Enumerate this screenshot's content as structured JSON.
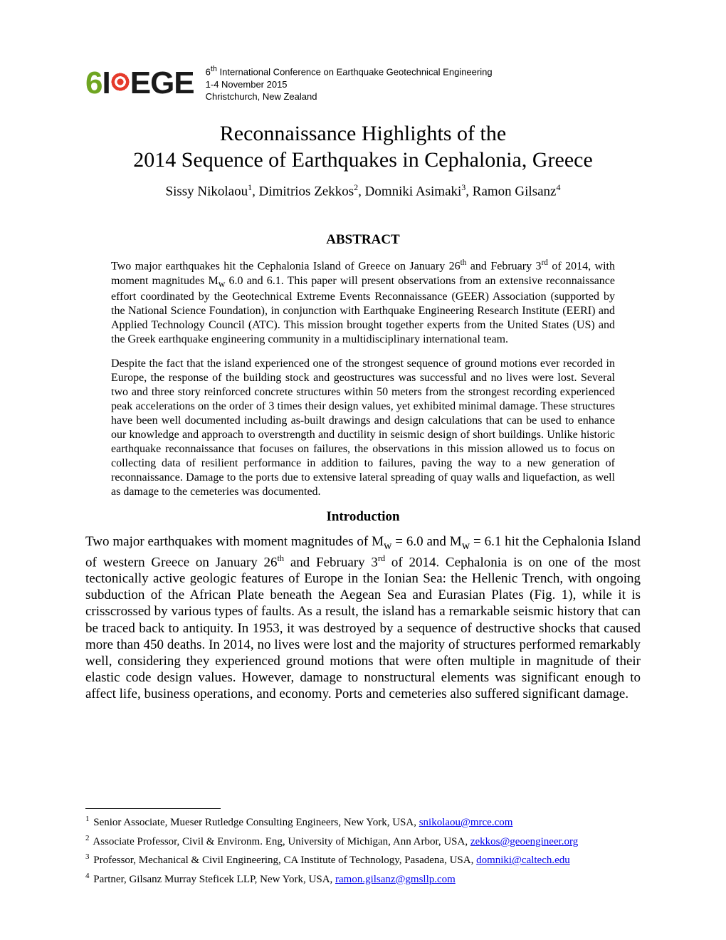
{
  "conference": {
    "line1_prefix": "6",
    "line1_sup": "th",
    "line1_rest": " International Conference on Earthquake Geotechnical Engineering",
    "line2": "1-4 November 2015",
    "line3": "Christchurch, New Zealand"
  },
  "logo": {
    "six": "6",
    "pre_target": "I",
    "post_target": "EGE"
  },
  "title": {
    "line1": "Reconnaissance Highlights of the",
    "line2": "2014 Sequence of Earthquakes in Cephalonia, Greece"
  },
  "authors": {
    "a1_name": "Sissy Nikolaou",
    "a1_sup": "1",
    "a2_name": "Dimitrios Zekkos",
    "a2_sup": "2",
    "a3_name": "Domniki Asimaki",
    "a3_sup": "3",
    "a4_name": "Ramon Gilsanz",
    "a4_sup": "4"
  },
  "headings": {
    "abstract": "ABSTRACT",
    "introduction": "Introduction"
  },
  "abstract": {
    "p1_a": "Two major earthquakes hit the Cephalonia Island of Greece on January 26",
    "p1_sup1": "th",
    "p1_b": " and February 3",
    "p1_sup2": "rd",
    "p1_c": " of 2014, with moment magnitudes M",
    "p1_sub": "w",
    "p1_d": " 6.0 and 6.1. This paper will present observations from an extensive reconnaissance effort coordinated by the Geotechnical Extreme Events Reconnaissance (GEER) Association (supported by the National Science Foundation), in conjunction with Earthquake Engineering Research Institute (EERI) and Applied Technology Council (ATC). This mission brought together experts from the United States (US) and the Greek earthquake engineering community in a multidisciplinary international team.",
    "p2": "Despite the fact that the island experienced one of the strongest sequence of ground motions ever recorded in Europe, the response of the building stock and geostructures was successful and no lives were lost. Several two and three story reinforced concrete structures within 50 meters from the strongest recording experienced peak accelerations on the order of 3 times their design values, yet exhibited minimal damage. These structures have been well documented including as-built drawings and design calculations that can be used to enhance our knowledge and approach to overstrength and ductility in seismic design of short buildings. Unlike historic earthquake reconnaissance that focuses on failures, the observations in this mission allowed us to focus on collecting data of resilient performance in addition to failures, paving the way to a new generation of reconnaissance. Damage to the ports due to extensive lateral spreading of quay walls and liquefaction, as well as damage to the cemeteries was documented."
  },
  "intro": {
    "a": "Two major earthquakes with moment magnitudes of M",
    "sub1": "w",
    "b": " = 6.0 and M",
    "sub2": "w",
    "c": " = 6.1 hit the Cephalonia Island of western Greece on January 26",
    "sup1": "th",
    "d": " and February 3",
    "sup2": "rd",
    "e": " of 2014. Cephalonia is on one of the most tectonically active geologic features of Europe in the Ionian Sea: the Hellenic Trench, with ongoing subduction of the African Plate beneath the Aegean Sea and Eurasian Plates (Fig. 1), while it is crisscrossed by various types of faults. As a result, the island has a remarkable seismic history that can be traced back to antiquity. In 1953, it was destroyed by a sequence of destructive shocks that caused more than 450 deaths. In 2014, no lives were lost and the majority of structures performed remarkably well, considering they experienced ground motions that were often multiple in magnitude of their elastic code design values. However, damage to nonstructural elements was significant enough to affect life, business operations, and economy. Ports and cemeteries also suffered significant damage."
  },
  "footnotes": {
    "f1_num": "1",
    "f1_text": " Senior Associate, Mueser Rutledge Consulting Engineers, New York, USA, ",
    "f1_email": "snikolaou@mrce.com",
    "f2_num": "2",
    "f2_text": " Associate Professor, Civil & Environm. Eng, University of Michigan, Ann Arbor, USA, ",
    "f2_email": "zekkos@geoengineer.org",
    "f3_num": "3",
    "f3_text": " Professor, Mechanical & Civil Engineering, CA Institute of Technology, Pasadena, USA, ",
    "f3_email": "domniki@caltech.edu",
    "f4_num": "4",
    "f4_text": " Partner, Gilsanz Murray Steficek LLP, New York, USA, ",
    "f4_email": "ramon.gilsanz@gmsllp.com"
  }
}
